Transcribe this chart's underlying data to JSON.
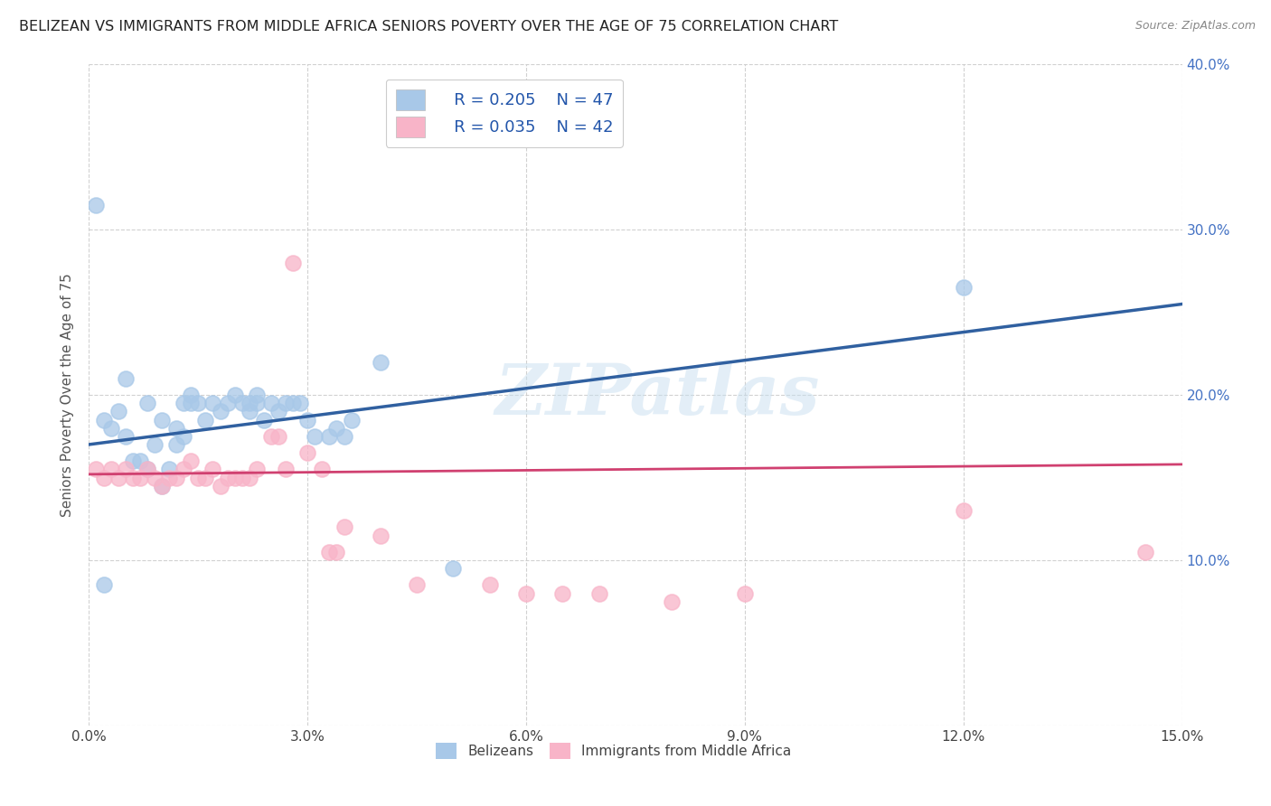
{
  "title": "BELIZEAN VS IMMIGRANTS FROM MIDDLE AFRICA SENIORS POVERTY OVER THE AGE OF 75 CORRELATION CHART",
  "source": "Source: ZipAtlas.com",
  "ylabel": "Seniors Poverty Over the Age of 75",
  "xlim": [
    0,
    0.15
  ],
  "ylim": [
    0,
    0.4
  ],
  "xticks": [
    0.0,
    0.03,
    0.06,
    0.09,
    0.12,
    0.15
  ],
  "xtick_labels": [
    "0.0%",
    "3.0%",
    "6.0%",
    "9.0%",
    "12.0%",
    "15.0%"
  ],
  "yticks": [
    0.0,
    0.1,
    0.2,
    0.3,
    0.4
  ],
  "ytick_labels": [
    "",
    "10.0%",
    "20.0%",
    "30.0%",
    "40.0%"
  ],
  "blue_color": "#a8c8e8",
  "pink_color": "#f8b4c8",
  "blue_line_color": "#3060a0",
  "pink_line_color": "#d04070",
  "legend_label_blue": "Belizeans",
  "legend_label_pink": "Immigrants from Middle Africa",
  "blue_trend_x0": 0.0,
  "blue_trend_y0": 0.17,
  "blue_trend_x1": 0.15,
  "blue_trend_y1": 0.255,
  "pink_trend_x0": 0.0,
  "pink_trend_y0": 0.152,
  "pink_trend_x1": 0.15,
  "pink_trend_y1": 0.158,
  "blue_x": [
    0.005,
    0.008,
    0.01,
    0.012,
    0.013,
    0.014,
    0.015,
    0.016,
    0.017,
    0.018,
    0.019,
    0.02,
    0.021,
    0.022,
    0.022,
    0.023,
    0.023,
    0.024,
    0.025,
    0.026,
    0.027,
    0.028,
    0.029,
    0.03,
    0.031,
    0.033,
    0.034,
    0.035,
    0.036,
    0.04,
    0.002,
    0.003,
    0.004,
    0.005,
    0.006,
    0.007,
    0.008,
    0.009,
    0.01,
    0.011,
    0.012,
    0.013,
    0.014,
    0.05,
    0.12,
    0.001,
    0.002
  ],
  "blue_y": [
    0.21,
    0.195,
    0.185,
    0.18,
    0.195,
    0.2,
    0.195,
    0.185,
    0.195,
    0.19,
    0.195,
    0.2,
    0.195,
    0.19,
    0.195,
    0.195,
    0.2,
    0.185,
    0.195,
    0.19,
    0.195,
    0.195,
    0.195,
    0.185,
    0.175,
    0.175,
    0.18,
    0.175,
    0.185,
    0.22,
    0.185,
    0.18,
    0.19,
    0.175,
    0.16,
    0.16,
    0.155,
    0.17,
    0.145,
    0.155,
    0.17,
    0.175,
    0.195,
    0.095,
    0.265,
    0.315,
    0.085
  ],
  "pink_x": [
    0.001,
    0.002,
    0.003,
    0.004,
    0.005,
    0.006,
    0.007,
    0.008,
    0.009,
    0.01,
    0.011,
    0.012,
    0.013,
    0.014,
    0.015,
    0.016,
    0.017,
    0.018,
    0.019,
    0.02,
    0.021,
    0.022,
    0.023,
    0.025,
    0.026,
    0.027,
    0.028,
    0.03,
    0.032,
    0.033,
    0.034,
    0.035,
    0.04,
    0.045,
    0.055,
    0.06,
    0.065,
    0.07,
    0.08,
    0.12,
    0.145,
    0.09
  ],
  "pink_y": [
    0.155,
    0.15,
    0.155,
    0.15,
    0.155,
    0.15,
    0.15,
    0.155,
    0.15,
    0.145,
    0.15,
    0.15,
    0.155,
    0.16,
    0.15,
    0.15,
    0.155,
    0.145,
    0.15,
    0.15,
    0.15,
    0.15,
    0.155,
    0.175,
    0.175,
    0.155,
    0.28,
    0.165,
    0.155,
    0.105,
    0.105,
    0.12,
    0.115,
    0.085,
    0.085,
    0.08,
    0.08,
    0.08,
    0.075,
    0.13,
    0.105,
    0.08
  ],
  "watermark": "ZIPatlas",
  "background_color": "#ffffff",
  "grid_color": "#cccccc"
}
